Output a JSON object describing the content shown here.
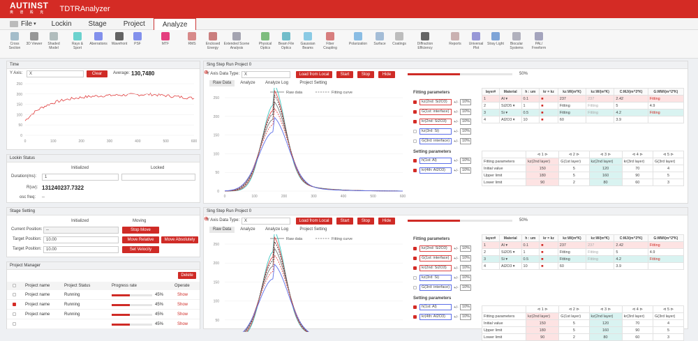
{
  "app": {
    "logo": "AUTINST",
    "logo_sub": "奥 谱 殿 克",
    "title": "TDTRAnalyzer"
  },
  "menu": [
    "File",
    "Lockin",
    "Stage",
    "Project",
    "Analyze"
  ],
  "ribbon": [
    "Cross Section",
    "3D Viewer",
    "Shaded Model",
    "Rays & Sport",
    "Aberrations",
    "Wavefront",
    "PSF",
    "MTF",
    "RMS",
    "Enclosed Energy",
    "Extended Scene Analysis",
    "Physical Optics",
    "Beam File Optics",
    "Gaussian Beams",
    "Fiber Coupling",
    "Polarization",
    "Surface",
    "Coatings",
    "Diffraction Efficiency",
    "Reports",
    "Universal Plot",
    "Stray Light",
    "Biocular Systems",
    "PAL/ Freeform"
  ],
  "time": {
    "title": "Time",
    "yaxis_label": "Y Axis:",
    "yaxis_value": "X",
    "clear": "Clear",
    "avg_label": "Average:",
    "avg_value": "130,7480",
    "yticks": [
      "250",
      "200",
      "150",
      "100",
      "50",
      "0"
    ],
    "xticks": [
      "0",
      "100",
      "200",
      "300",
      "400",
      "500",
      "600"
    ]
  },
  "lockin": {
    "title": "Lockin Status",
    "initialized": "Initialized",
    "locked": "Locked",
    "duration_label": "Duration(ms):",
    "duration_value": "1",
    "r_label": "R(uv):",
    "r_value": "131240237.7322",
    "osc_label": "osc freq:",
    "osc_value": "--"
  },
  "stage": {
    "title": "Stage Setting",
    "initialized": "Initialized",
    "moving": "Moving",
    "current_label": "Current Position:",
    "current_value": "--",
    "target1_label": "Target Position:",
    "target1_value": "10.00",
    "target2_label": "Target Position:",
    "target2_value": "10.00",
    "stop": "Stop Move",
    "relative": "Move Relative",
    "absolute": "Move Absolutely",
    "velocity": "Set Velocity"
  },
  "project": {
    "title": "Project Manager",
    "delete": "Delete",
    "cols": [
      "Project name",
      "Project Status",
      "Progress rate",
      "Operate"
    ],
    "rows": [
      {
        "name": "Project name",
        "status": "Running",
        "rate": "45%",
        "op": "Show",
        "checked": false
      },
      {
        "name": "Project name",
        "status": "Running",
        "rate": "45%",
        "op": "Show",
        "checked": true
      },
      {
        "name": "Project name",
        "status": "Running",
        "rate": "45%",
        "op": "Show",
        "checked": false
      },
      {
        "name": "",
        "status": "",
        "rate": "45%",
        "op": "Show",
        "checked": false
      }
    ],
    "progress": 0.45
  },
  "run": {
    "title": "Sing Step Run Project 0",
    "ytype_label": "Y Axis Data Type:",
    "ytype_value": "X",
    "load": "Load from Local",
    "start": "Start",
    "stop": "Stop",
    "hide": "Hide",
    "percent": "50%",
    "progress": 0.5,
    "tabs": [
      "Raw Data",
      "Analyze",
      "Analyze Log",
      "Project Setting"
    ],
    "legend_raw": "Raw data",
    "legend_fit": "Fitting curve",
    "yticks": [
      "250",
      "200",
      "150",
      "100",
      "50",
      "0"
    ],
    "xticks": [
      "0",
      "100",
      "200",
      "300",
      "400",
      "500",
      "600"
    ],
    "fit_title": "Fitting parameters",
    "set_title": "Setting parameters",
    "fit_params": [
      {
        "label": "kz(2nd: Si2O3)",
        "pct": "10%",
        "on": true
      },
      {
        "label": "G(1st: interface)",
        "pct": "10%",
        "on": true
      },
      {
        "label": "kr(2nd: Si2O3)",
        "pct": "10%",
        "on": true
      },
      {
        "label": "kz(3rd: Si)",
        "pct": "10%",
        "on": false
      },
      {
        "label": "G(3rd: interface)",
        "pct": "10%",
        "on": false
      }
    ],
    "set_params": [
      {
        "label": "h(1st: Al)",
        "pct": "10%",
        "on": true
      },
      {
        "label": "kr(4th: Al2O3)",
        "pct": "10%",
        "on": true
      }
    ],
    "pm": "+/-",
    "layer_cols": [
      "layer#",
      "Material",
      "h : um",
      "kr = kz",
      "kz:W/(m*K)",
      "kz:W/(m*K)",
      "C:MJ/(m^3*K)",
      "G:MW/(m^2*K)"
    ],
    "layers": [
      {
        "n": "1",
        "mat": "Al",
        "h": "0.1",
        "kz": "237",
        "kz2": "237",
        "c": "2.42",
        "g": "Fitting"
      },
      {
        "n": "2",
        "mat": "Si2O5",
        "h": "1",
        "kz": "Fitting",
        "kz2": "Fitting",
        "c": "5",
        "g": "4.9"
      },
      {
        "n": "3",
        "mat": "Si",
        "h": "0.5",
        "kz": "Fitting",
        "kz2": "Fitting",
        "c": "4.2",
        "g": "Fitting"
      },
      {
        "n": "4",
        "mat": "Al2O3",
        "h": "10",
        "kz": "60",
        "kz2": "",
        "c": "3.9",
        "g": ""
      }
    ],
    "pager": [
      "1",
      "2",
      "3",
      "4",
      "5"
    ],
    "fit_cols": [
      "Fitting parameters",
      "kz(2nd layer)",
      "G(1st layer)",
      "kz(2nd layer)",
      "kr(3rd layer)",
      "G(3rd layer)"
    ],
    "fit_rows": [
      {
        "label": "Initial value",
        "v": [
          "150",
          "5",
          "120",
          "70",
          "4"
        ]
      },
      {
        "label": "Upper limit",
        "v": [
          "180",
          "5",
          "160",
          "90",
          "5"
        ]
      },
      {
        "label": "Lower limit",
        "v": [
          "90",
          "2",
          "80",
          "60",
          "3"
        ]
      }
    ]
  },
  "colors": {
    "accent": "#cf2b26",
    "teal": "#3cc6c0",
    "blue": "#5b6ee8",
    "gray": "#777777"
  }
}
